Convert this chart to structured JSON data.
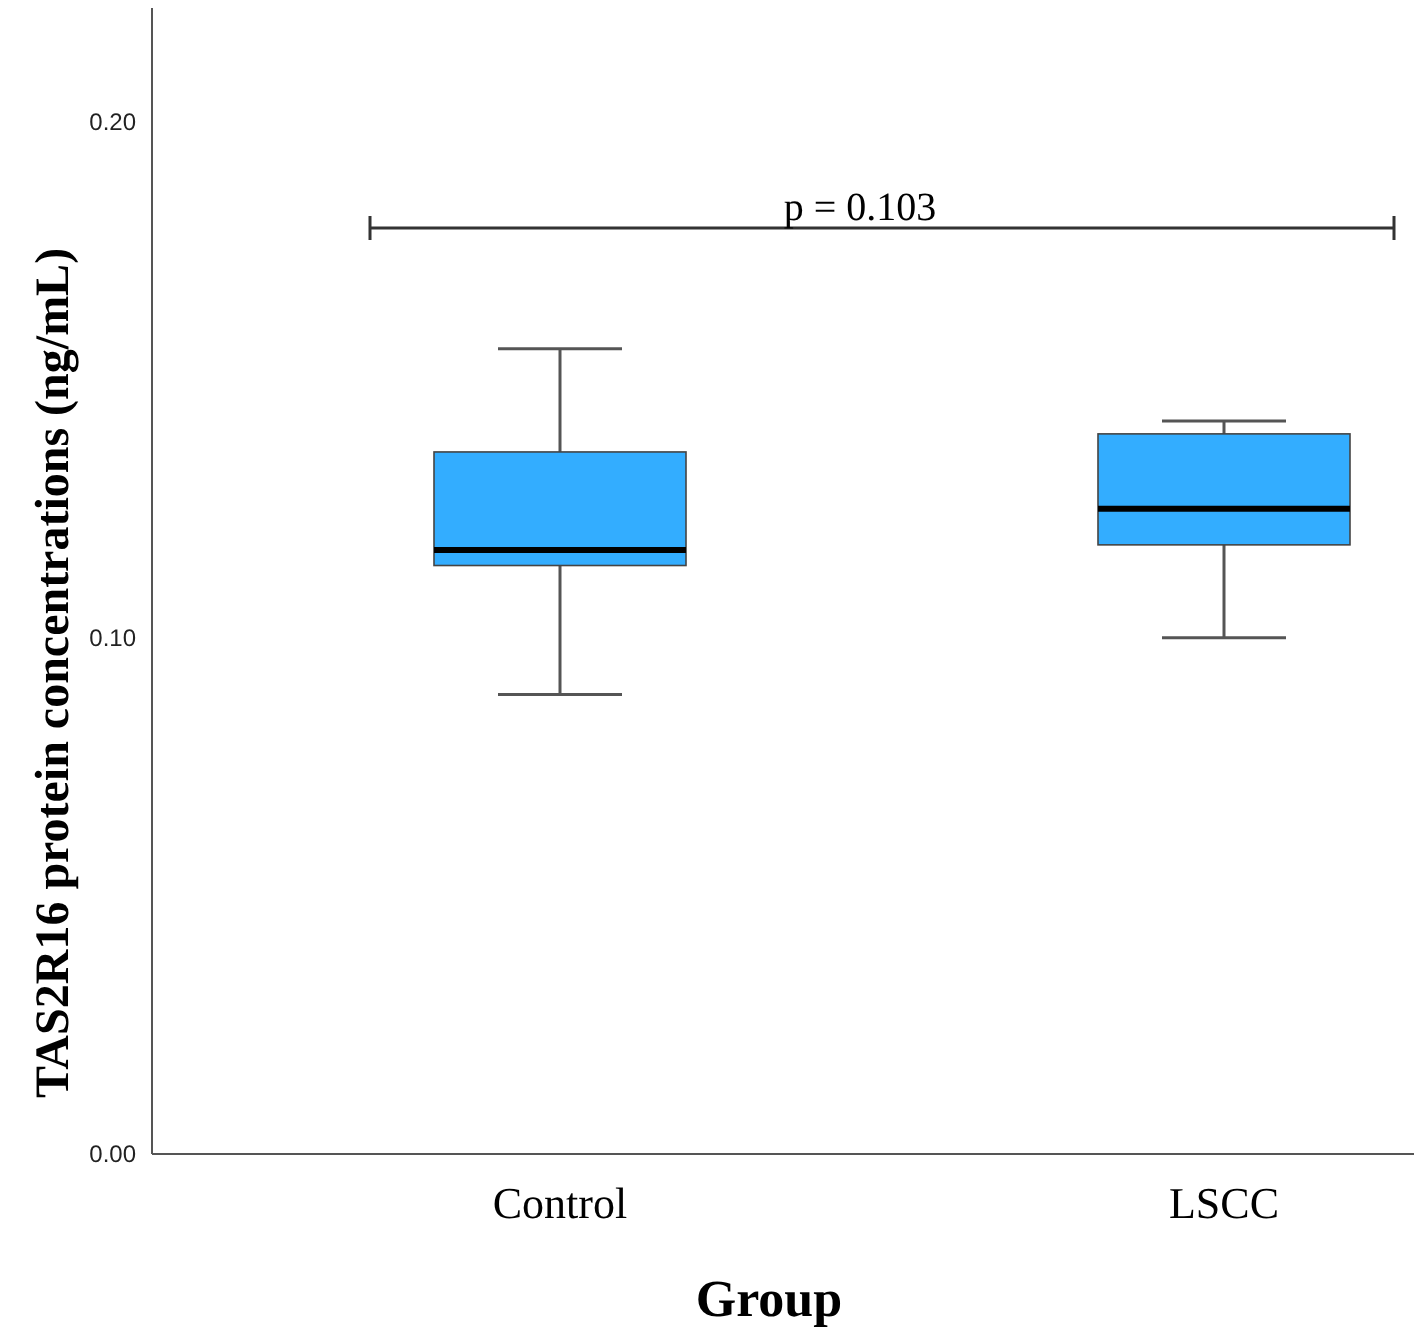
{
  "chart_data": {
    "type": "box",
    "categories": [
      "Control",
      "LSCC"
    ],
    "xlabel": "Group",
    "ylabel": "TAS2R16 protein concentrations (ng/mL)",
    "ylim": [
      0,
      0.222
    ],
    "yticks": [
      {
        "value": 0,
        "label": "0.00"
      },
      {
        "value": 0.1,
        "label": "0.10"
      },
      {
        "value": 0.2,
        "label": "0.20"
      }
    ],
    "color": "#33adff",
    "grid": false,
    "boxes": [
      {
        "low": 0.089,
        "q1": 0.114,
        "median": 0.117,
        "q3": 0.136,
        "high": 0.156
      },
      {
        "low": 0.1,
        "q1": 0.118,
        "median": 0.125,
        "q3": 0.1395,
        "high": 0.142
      }
    ],
    "annotations": [
      "p = 0.103"
    ]
  }
}
